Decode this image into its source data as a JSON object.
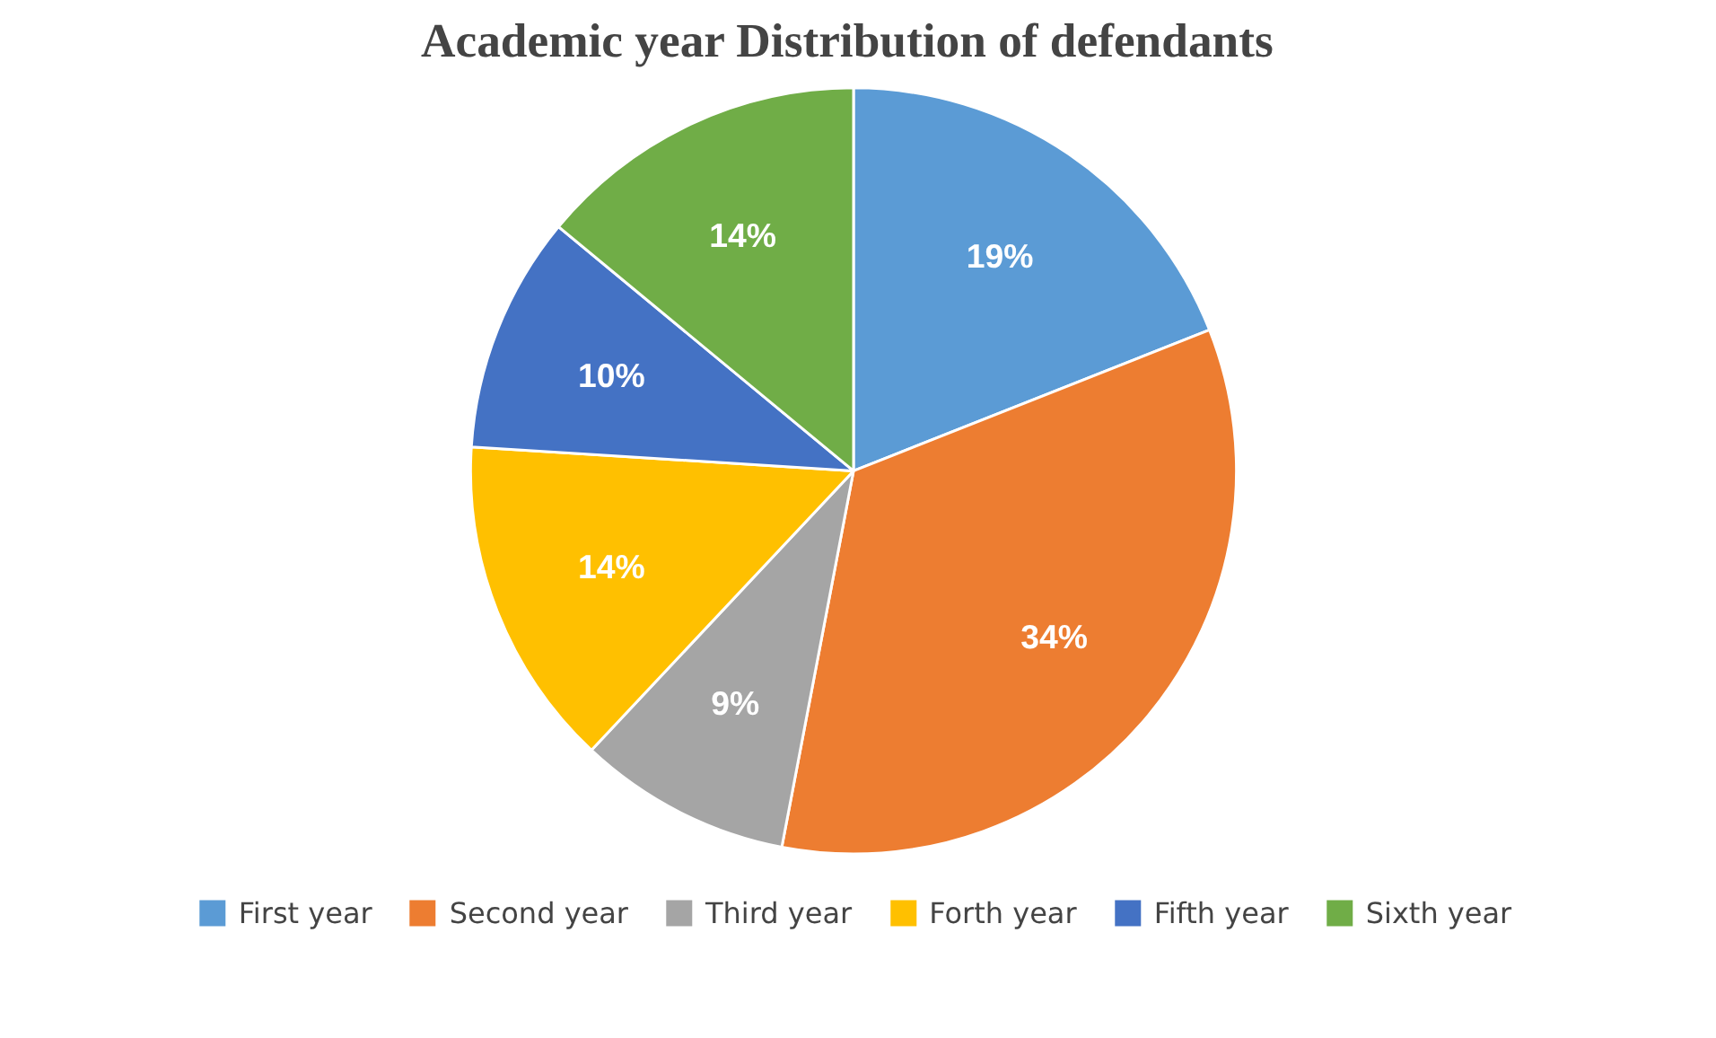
{
  "chart_data": {
    "type": "pie",
    "title": "Academic year Distribution of  defendants",
    "categories": [
      "First year",
      "Second year",
      "Third year",
      "Forth year",
      "Fifth year",
      "Sixth year"
    ],
    "values": [
      19,
      34,
      9,
      14,
      10,
      14
    ],
    "value_labels": [
      "19%",
      "34%",
      "9%",
      "14%",
      "10%",
      "14%"
    ],
    "colors": [
      "#5b9bd5",
      "#ed7d31",
      "#a5a5a5",
      "#ffc000",
      "#4472c4",
      "#70ad47"
    ],
    "legend": "bottom"
  }
}
